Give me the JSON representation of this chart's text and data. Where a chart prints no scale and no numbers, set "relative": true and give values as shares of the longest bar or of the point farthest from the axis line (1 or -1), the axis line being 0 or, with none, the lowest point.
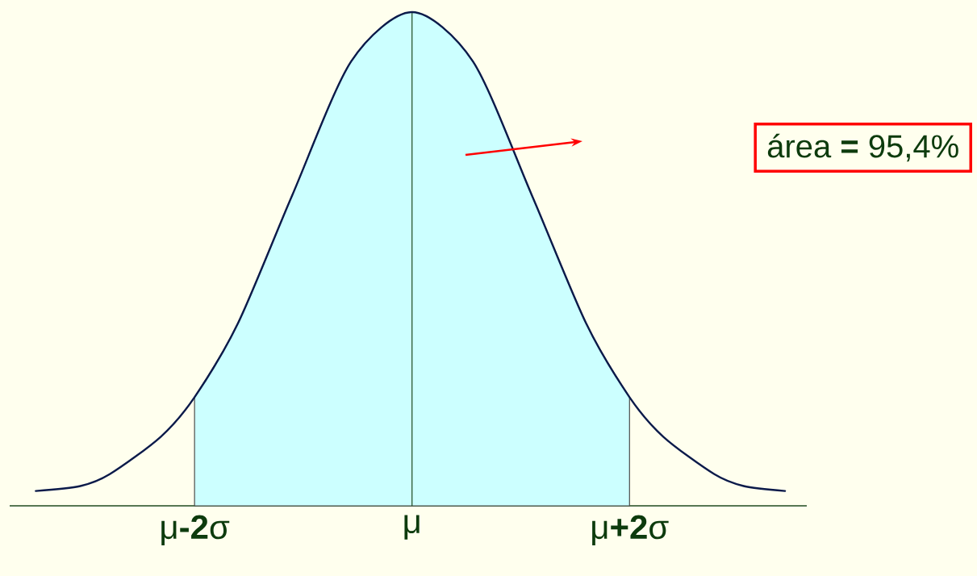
{
  "chart_data": {
    "type": "line",
    "relative": true,
    "xlim": [
      -3.7,
      3.63
    ],
    "xticks": [
      {
        "value": -2,
        "label": "μ**-2**σ"
      },
      {
        "value": 0,
        "label": "μ"
      },
      {
        "value": 2,
        "label": "μ**+2**σ"
      }
    ],
    "series": [
      {
        "type": "area",
        "color": "#ccffff",
        "x": [
          -2,
          -1.6,
          -1.1,
          -0.56,
          0,
          0.56,
          1.1,
          1.6,
          2
        ],
        "values": [
          0.22,
          0.37,
          0.63,
          0.9,
          1,
          0.9,
          0.63,
          0.37,
          0.22
        ]
      },
      {
        "color": "#0b1a4a",
        "x": [
          -3.46,
          -3.05,
          -2.78,
          -2.31,
          -2,
          -1.6,
          -1.1,
          -0.56,
          0,
          0.56,
          1.1,
          1.6,
          2,
          2.31,
          2.78,
          3.05,
          3.43
        ],
        "values": [
          0.03,
          0.04,
          0.064,
          0.14,
          0.22,
          0.37,
          0.63,
          0.9,
          1,
          0.9,
          0.63,
          0.37,
          0.22,
          0.14,
          0.064,
          0.04,
          0.03
        ]
      }
    ],
    "ref_lines": [
      {
        "axis": "x",
        "value": 0,
        "color": "#1f4a1f"
      }
    ],
    "annotations": [
      "área **=** 95,4%"
    ]
  }
}
